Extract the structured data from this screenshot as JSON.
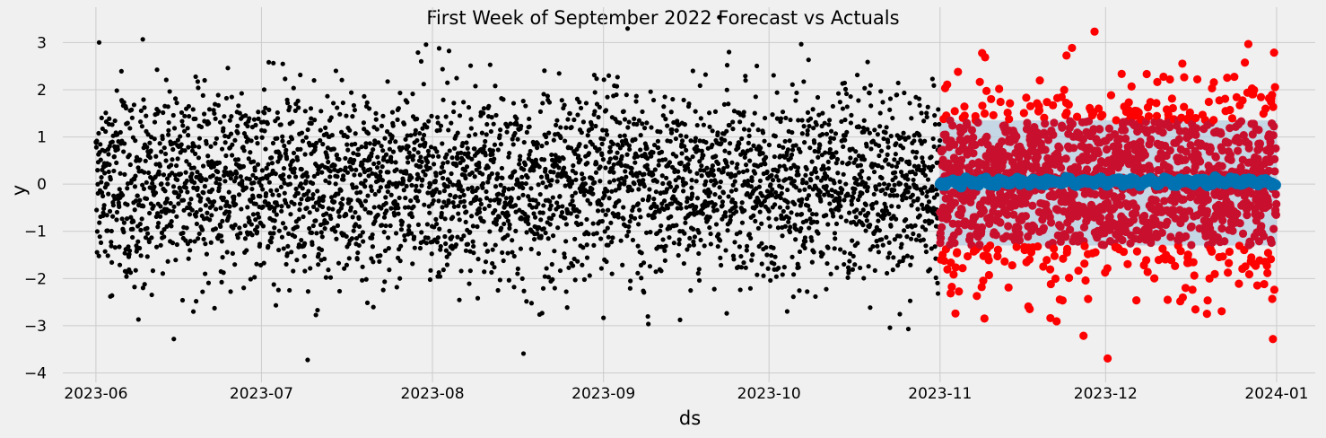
{
  "chart_data": {
    "type": "scatter",
    "title": "First Week of September 2022 Forecast vs Actuals",
    "xlabel": "ds",
    "ylabel": "y",
    "x_range": [
      "2023-05-26",
      "2024-01-08"
    ],
    "ylim": [
      -4.2,
      3.75
    ],
    "x_tick_labels": [
      "2023-06",
      "2023-07",
      "2023-08",
      "2023-09",
      "2023-10",
      "2023-11",
      "2023-12",
      "2024-01"
    ],
    "x_tick_dates": [
      "2023-06-01",
      "2023-07-01",
      "2023-08-01",
      "2023-09-01",
      "2023-10-01",
      "2023-11-01",
      "2023-12-01",
      "2024-01-01"
    ],
    "y_ticks": [
      -4,
      -3,
      -2,
      -1,
      0,
      1,
      2,
      3
    ],
    "y_tick_labels": [
      "−4",
      "−3",
      "−2",
      "−1",
      "0",
      "1",
      "2",
      "3"
    ],
    "grid": true,
    "colors": {
      "history": "#000000",
      "actuals": "#ff0000",
      "actuals_overlap": "#c8102e",
      "forecast": "#0072b2",
      "interval": "#b7cde0"
    },
    "series": [
      {
        "kind": "history",
        "x_range": [
          "2023-06-01",
          "2023-10-31"
        ],
        "y_mean": 0.0,
        "y_std": 1.0
      },
      {
        "kind": "actuals",
        "x_range": [
          "2023-11-01",
          "2023-12-31"
        ],
        "y_mean": 0.0,
        "y_std": 1.0
      },
      {
        "kind": "forecast",
        "x_range": [
          "2023-11-01",
          "2023-12-31"
        ],
        "yhat": 0.05,
        "interval": [
          -1.3,
          1.35
        ]
      }
    ]
  }
}
